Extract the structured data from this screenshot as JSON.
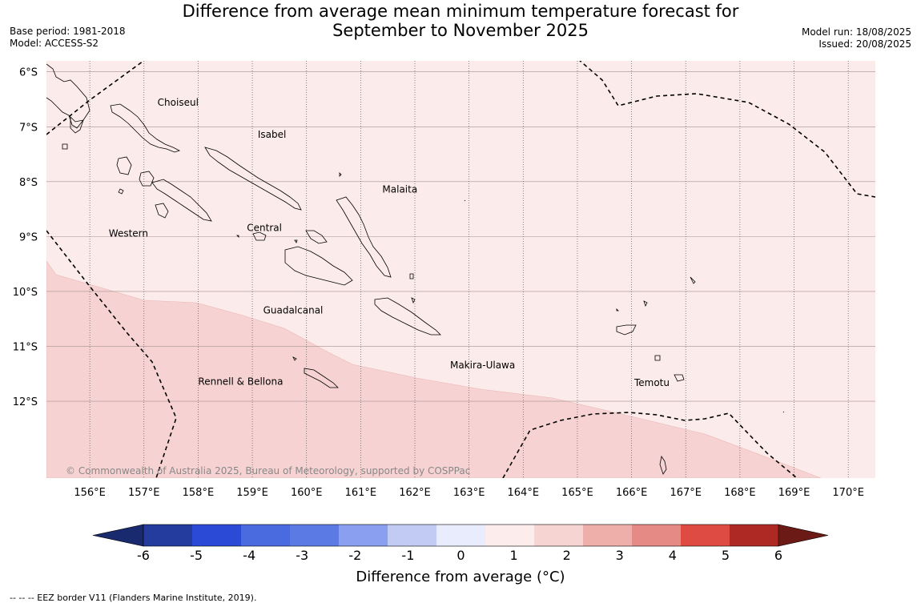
{
  "title_line1": "Difference from average mean minimum temperature forecast for",
  "title_line2": "September to November 2025",
  "base_period": "Base period: 1981-2018",
  "model": "Model: ACCESS-S2",
  "model_run": "Model run: 18/08/2025",
  "issued": "Issued: 20/08/2025",
  "map": {
    "lon_range": [
      155.2,
      170.5
    ],
    "lat_range": [
      -13.4,
      -5.8
    ],
    "lat_ticks": [
      -6,
      -7,
      -8,
      -9,
      -10,
      -11,
      -12
    ],
    "lat_tick_labels": [
      "6°S",
      "7°S",
      "8°S",
      "9°S",
      "10°S",
      "11°S",
      "12°S"
    ],
    "lon_ticks": [
      156,
      157,
      158,
      159,
      160,
      161,
      162,
      163,
      164,
      165,
      166,
      167,
      168,
      169,
      170
    ],
    "lon_tick_labels": [
      "156°E",
      "157°E",
      "158°E",
      "159°E",
      "160°E",
      "161°E",
      "162°E",
      "163°E",
      "164°E",
      "165°E",
      "166°E",
      "167°E",
      "168°E",
      "169°E",
      "170°E"
    ],
    "province_labels": [
      {
        "name": "Choiseul",
        "lon": 157.25,
        "lat": -6.62
      },
      {
        "name": "Isabel",
        "lon": 159.1,
        "lat": -7.2
      },
      {
        "name": "Malaita",
        "lon": 161.4,
        "lat": -8.2
      },
      {
        "name": "Western",
        "lon": 156.35,
        "lat": -9.0
      },
      {
        "name": "Central",
        "lon": 158.9,
        "lat": -8.9
      },
      {
        "name": "Guadalcanal",
        "lon": 159.2,
        "lat": -10.4
      },
      {
        "name": "Makira-Ulawa",
        "lon": 162.65,
        "lat": -11.4
      },
      {
        "name": "Rennell & Bellona",
        "lon": 158.0,
        "lat": -11.7
      },
      {
        "name": "Temotu",
        "lon": 166.05,
        "lat": -11.72
      }
    ],
    "copyright": "© Commonwealth of Australia 2025, Bureau of Meteorology, supported by COSPPac",
    "anomaly_regions": [
      {
        "range": "1 to 2",
        "color": "#f6d3d2"
      },
      {
        "range": "0 to 1",
        "color": "#fbebea"
      }
    ]
  },
  "colorbar": {
    "title": "Difference from average (°C)",
    "ticks": [
      "-6",
      "-5",
      "-4",
      "-3",
      "-2",
      "-1",
      "0",
      "1",
      "2",
      "3",
      "4",
      "5",
      "6"
    ],
    "colors": [
      "#233c9e",
      "#2b4bd6",
      "#4a6ae0",
      "#5b7ae3",
      "#8a9ff0",
      "#c2cbf4",
      "#e8ecfc",
      "#fceceb",
      "#f6d4d2",
      "#eeaeaa",
      "#e58a84",
      "#de4b43",
      "#ae2923"
    ],
    "under_color": "#1a2a6e",
    "over_color": "#6b1a15"
  },
  "footnote": "--  --  -- EEZ border V11 (Flanders Marine Institute, 2019)."
}
